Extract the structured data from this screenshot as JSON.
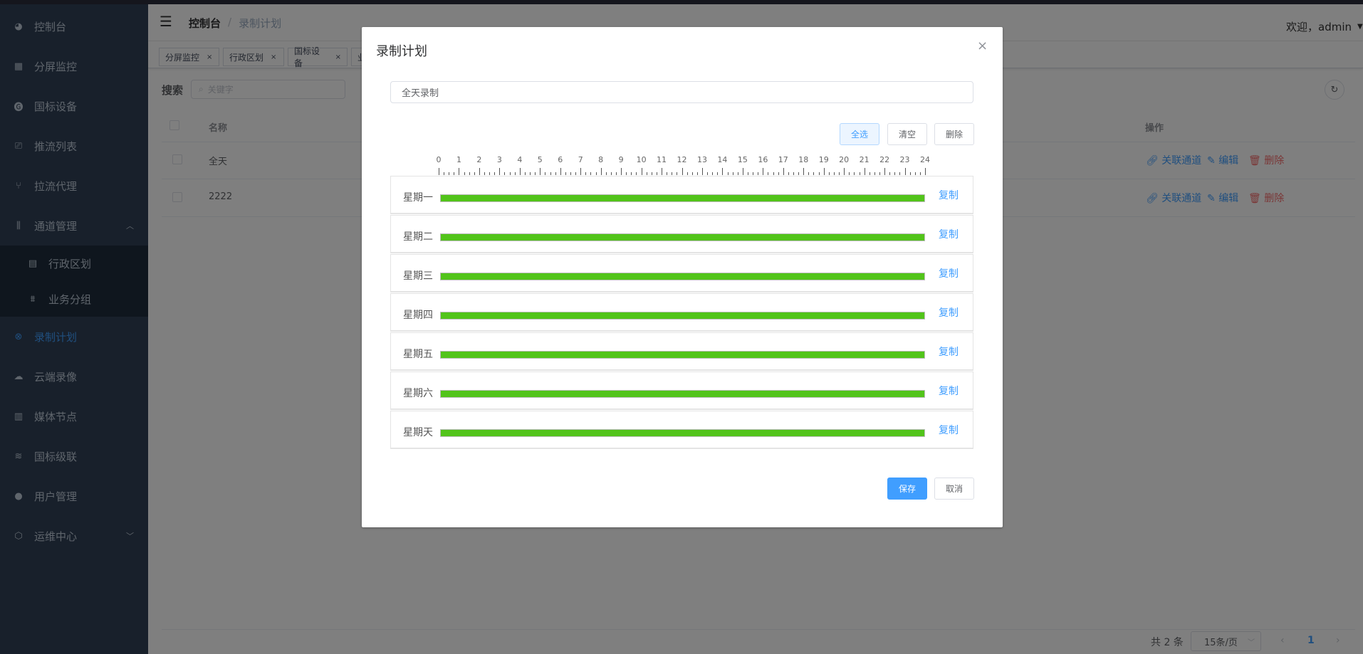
{
  "sidebar": {
    "items": [
      {
        "label": "控制台",
        "icon": "dashboard-icon"
      },
      {
        "label": "分屏监控",
        "icon": "grid-icon"
      },
      {
        "label": "国标设备",
        "icon": "g-icon"
      },
      {
        "label": "推流列表",
        "icon": "camera-icon"
      },
      {
        "label": "拉流代理",
        "icon": "proxy-icon"
      },
      {
        "label": "通道管理",
        "icon": "sliders-icon",
        "expanded": true
      },
      {
        "label": "行政区划",
        "icon": "building-icon"
      },
      {
        "label": "业务分组",
        "icon": "org-icon"
      },
      {
        "label": "录制计划",
        "icon": "record-icon",
        "active": true
      },
      {
        "label": "云端录像",
        "icon": "cloud-icon"
      },
      {
        "label": "媒体节点",
        "icon": "server-icon"
      },
      {
        "label": "国标级联",
        "icon": "layers-icon"
      },
      {
        "label": "用户管理",
        "icon": "user-icon"
      },
      {
        "label": "运维中心",
        "icon": "ops-icon"
      }
    ]
  },
  "header": {
    "breadcrumb": [
      "控制台",
      "录制计划"
    ],
    "separator": "/",
    "welcome": "欢迎，admin"
  },
  "tags": [
    {
      "label": "分屏监控"
    },
    {
      "label": "行政区划"
    },
    {
      "label": "国标设备"
    },
    {
      "label": "业"
    }
  ],
  "search": {
    "label": "搜索",
    "placeholder": "关键字"
  },
  "table": {
    "headers": {
      "name": "名称",
      "ops": "操作"
    },
    "rows": [
      {
        "name": "全天"
      },
      {
        "name": "2222"
      }
    ],
    "actions": {
      "link": "关联通道",
      "edit": "编辑",
      "delete": "删除"
    }
  },
  "pagination": {
    "total": "共 2 条",
    "page_size": "15条/页",
    "current": "1"
  },
  "modal": {
    "title": "录制计划",
    "name_value": "全天录制",
    "buttons": {
      "select_all": "全选",
      "clear": "清空",
      "delete": "删除",
      "save": "保存",
      "cancel": "取消"
    },
    "hours": [
      "0",
      "1",
      "2",
      "3",
      "4",
      "5",
      "6",
      "7",
      "8",
      "9",
      "10",
      "11",
      "12",
      "13",
      "14",
      "15",
      "16",
      "17",
      "18",
      "19",
      "20",
      "21",
      "22",
      "23",
      "24"
    ],
    "copy_label": "复制",
    "days": [
      {
        "label": "星期一",
        "start": 0,
        "end": 24
      },
      {
        "label": "星期二",
        "start": 0,
        "end": 24
      },
      {
        "label": "星期三",
        "start": 0,
        "end": 24
      },
      {
        "label": "星期四",
        "start": 0,
        "end": 24
      },
      {
        "label": "星期五",
        "start": 0,
        "end": 24
      },
      {
        "label": "星期六",
        "start": 0,
        "end": 24
      },
      {
        "label": "星期天",
        "start": 0,
        "end": 24
      }
    ],
    "bar_color": "#52c41a",
    "accent": "#409eff"
  }
}
